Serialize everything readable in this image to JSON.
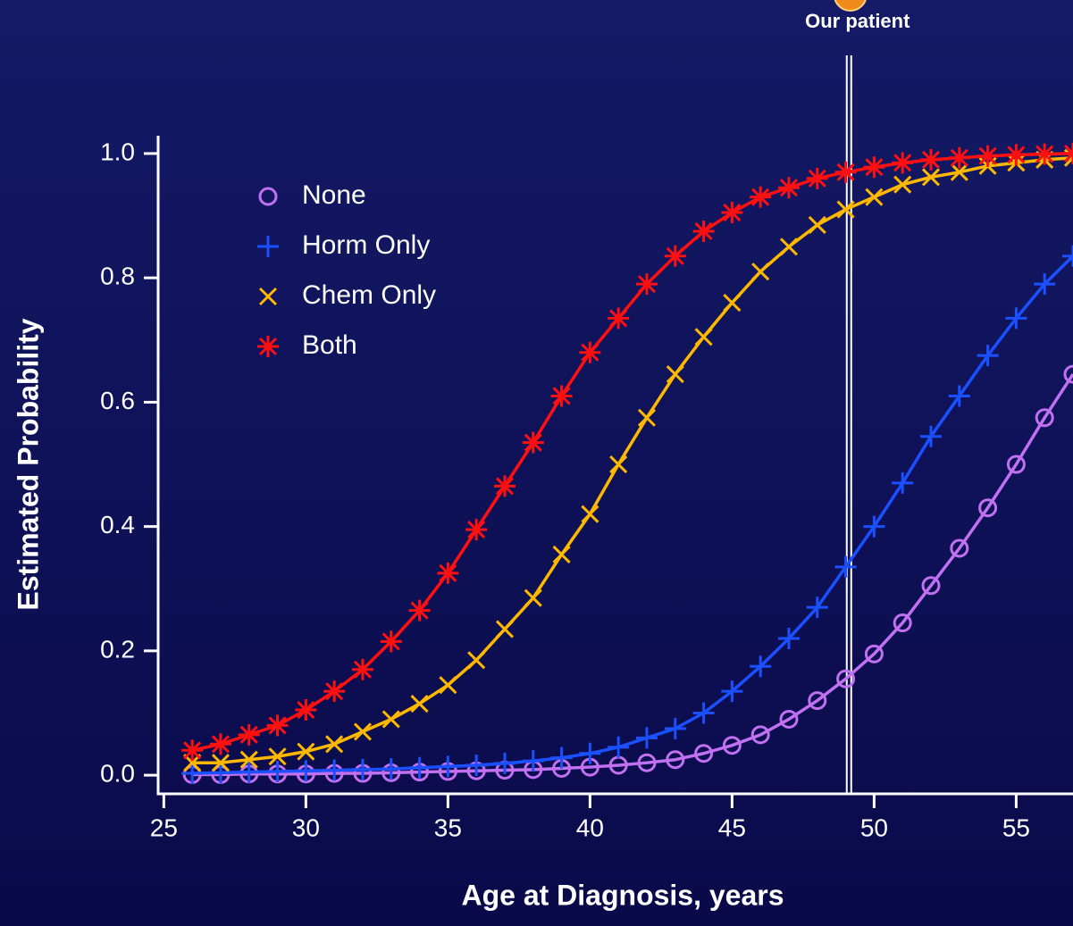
{
  "chart_data": {
    "type": "line",
    "xlabel": "Age at Diagnosis, years",
    "ylabel": "Estimated Probability",
    "x": [
      26,
      27,
      28,
      29,
      30,
      31,
      32,
      33,
      34,
      35,
      36,
      37,
      38,
      39,
      40,
      41,
      42,
      43,
      44,
      45,
      46,
      47,
      48,
      49,
      50,
      51,
      52,
      53,
      54,
      55,
      56,
      57
    ],
    "series": [
      {
        "name": "None",
        "color": "#c070f0",
        "marker": "circle",
        "values": [
          0.001,
          0.001,
          0.002,
          0.002,
          0.002,
          0.003,
          0.003,
          0.004,
          0.005,
          0.006,
          0.007,
          0.008,
          0.009,
          0.011,
          0.013,
          0.016,
          0.02,
          0.025,
          0.035,
          0.048,
          0.065,
          0.09,
          0.12,
          0.155,
          0.195,
          0.245,
          0.305,
          0.365,
          0.43,
          0.5,
          0.575,
          0.645
        ]
      },
      {
        "name": "Horm Only",
        "color": "#1a50ff",
        "marker": "plus",
        "values": [
          0.003,
          0.004,
          0.005,
          0.006,
          0.007,
          0.008,
          0.009,
          0.01,
          0.012,
          0.014,
          0.016,
          0.019,
          0.023,
          0.028,
          0.035,
          0.045,
          0.06,
          0.075,
          0.1,
          0.135,
          0.175,
          0.22,
          0.27,
          0.335,
          0.4,
          0.47,
          0.545,
          0.61,
          0.675,
          0.735,
          0.79,
          0.835
        ]
      },
      {
        "name": "Chem Only",
        "color": "#ffb800",
        "marker": "x",
        "values": [
          0.02,
          0.02,
          0.025,
          0.03,
          0.038,
          0.05,
          0.07,
          0.09,
          0.115,
          0.145,
          0.185,
          0.235,
          0.285,
          0.355,
          0.42,
          0.5,
          0.575,
          0.645,
          0.705,
          0.76,
          0.81,
          0.85,
          0.885,
          0.91,
          0.93,
          0.95,
          0.962,
          0.97,
          0.98,
          0.985,
          0.99,
          0.993
        ]
      },
      {
        "name": "Both",
        "color": "#ff1010",
        "marker": "asterisk",
        "values": [
          0.04,
          0.05,
          0.065,
          0.08,
          0.105,
          0.135,
          0.17,
          0.215,
          0.265,
          0.325,
          0.395,
          0.465,
          0.535,
          0.61,
          0.68,
          0.735,
          0.79,
          0.835,
          0.875,
          0.905,
          0.93,
          0.945,
          0.96,
          0.97,
          0.978,
          0.985,
          0.99,
          0.993,
          0.996,
          0.998,
          0.999,
          1.0
        ]
      }
    ],
    "xlim": [
      24.8,
      57.0
    ],
    "ylim": [
      -0.03,
      1.02
    ],
    "xticks": [
      25,
      30,
      35,
      40,
      45,
      50,
      55
    ],
    "yticks": [
      {
        "value": 0,
        "label": "0.0"
      },
      {
        "value": 0.2,
        "label": "0.2"
      },
      {
        "value": 0.4,
        "label": "0.4"
      },
      {
        "value": 0.6,
        "label": "0.6"
      },
      {
        "value": 0.8,
        "label": "0.8"
      },
      {
        "value": 1,
        "label": "1.0"
      }
    ],
    "annotation": {
      "text": "Our patient",
      "x": 49.1
    },
    "legend": "upper left"
  }
}
